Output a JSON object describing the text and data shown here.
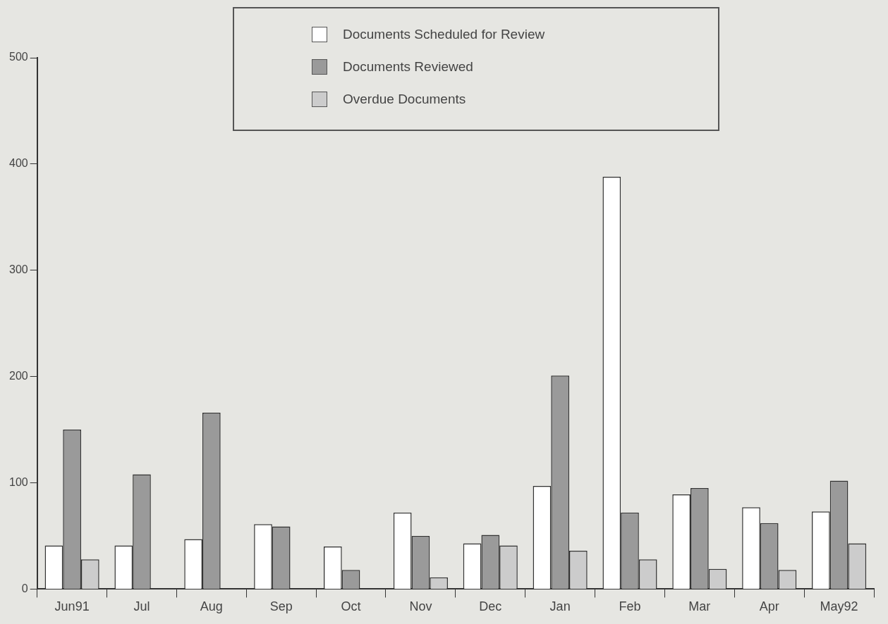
{
  "chart_data": {
    "type": "bar",
    "categories": [
      "Jun91",
      "Jul",
      "Aug",
      "Sep",
      "Oct",
      "Nov",
      "Dec",
      "Jan",
      "Feb",
      "Mar",
      "Apr",
      "May92"
    ],
    "series": [
      {
        "name": "Documents Scheduled for Review",
        "color": "#ffffff",
        "values": [
          41,
          41,
          47,
          61,
          40,
          72,
          43,
          97,
          388,
          89,
          77,
          73
        ]
      },
      {
        "name": "Documents Reviewed",
        "color": "#9a9a9a",
        "values": [
          150,
          108,
          166,
          59,
          18,
          50,
          51,
          201,
          72,
          95,
          62,
          102
        ]
      },
      {
        "name": "Overdue Documents",
        "color": "#cccccc",
        "values": [
          28,
          null,
          null,
          null,
          null,
          11,
          41,
          36,
          28,
          19,
          18,
          43
        ]
      }
    ],
    "ylim": [
      0,
      500
    ],
    "yticks": [
      0,
      100,
      200,
      300,
      400,
      500
    ],
    "grid": false,
    "legend": "top"
  }
}
